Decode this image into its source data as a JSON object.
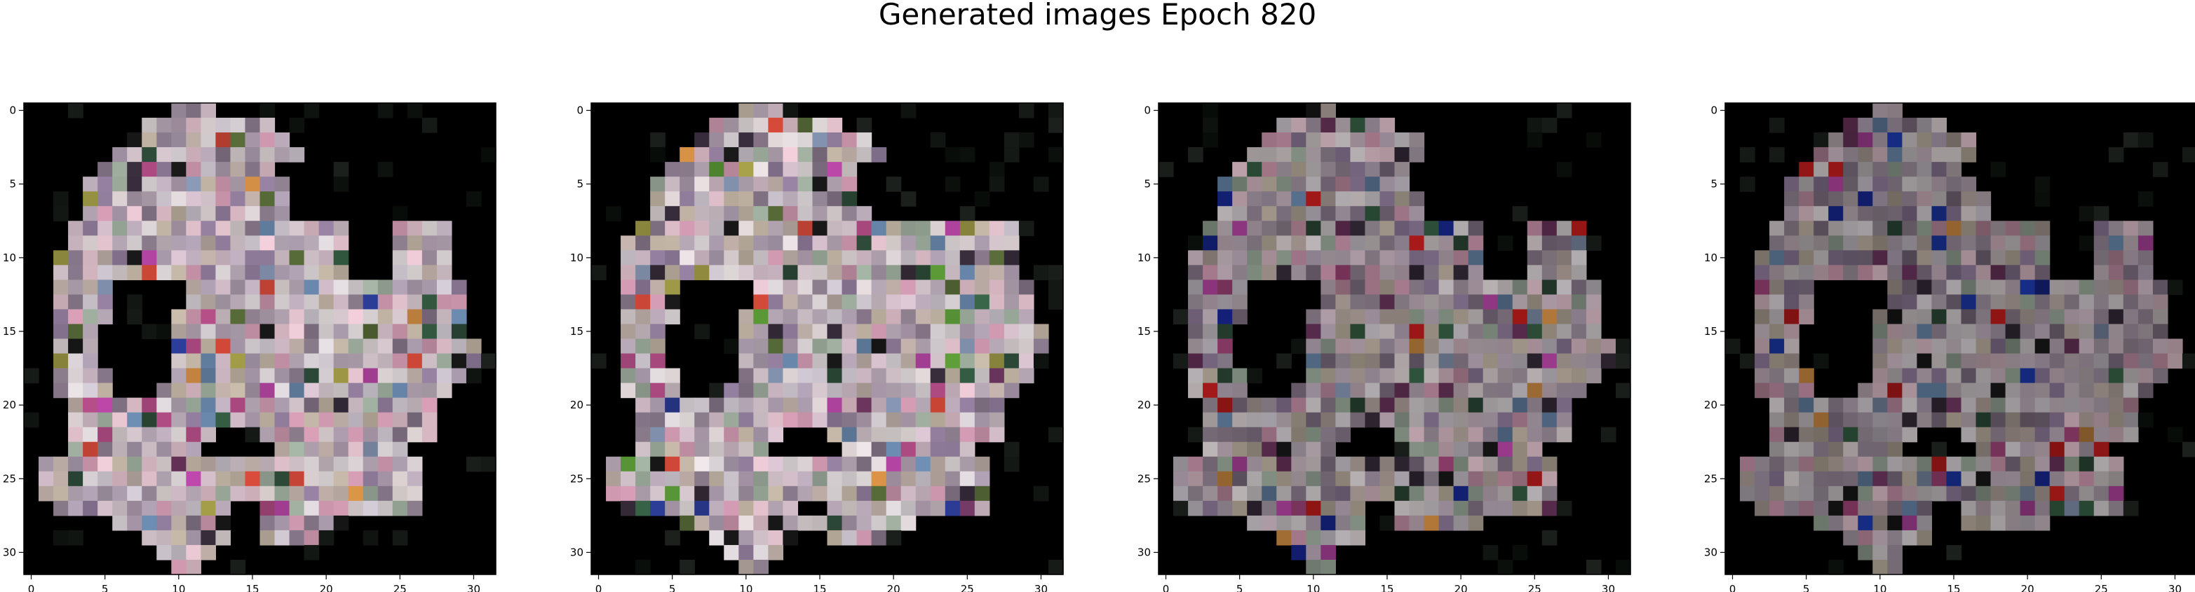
{
  "figure_title": "Generated images Epoch 820",
  "chart_data": [
    {
      "type": "heatmap",
      "title": "",
      "xlabel": "",
      "ylabel": "",
      "grid_size": [
        32,
        32
      ],
      "xlim": [
        -0.5,
        31.5
      ],
      "ylim": [
        31.5,
        -0.5
      ],
      "xticks": [
        0,
        5,
        10,
        15,
        20,
        25,
        30
      ],
      "yticks": [
        0,
        5,
        10,
        15,
        20,
        25,
        30
      ],
      "description_colors": {
        "background": "#000000",
        "dominant_light": "#e6dcdc"
      },
      "mask_rows": [
        "..........XXX...................",
        "........XXXXXXXXX...............",
        ".......XXXXXXXXXXX..............",
        "......XXXXXXXXXXXXX.............",
        ".....XXXXXXXXXXXX...............",
        "....XXXXXXXXXXXXXX..............",
        "....XXXXXXXXXXXXXX..............",
        "....XXXXXXXXXXXXXX..............",
        "...XXXXXXXXXXXXXXXXXXX...XXXX...",
        "...XXXXXXXXXXXXXXXXXXX...XXXX...",
        "..XXXXXXXXXXXXXXXXXXXX...XXXX...",
        "..XXXXXXXXXXXXXXXXXXXX...XXXX...",
        "..XXXX.....XXXXXXXXXXXXXXXXXXX..",
        "..XXXX.....XXXXXXXXXXXXXXXXXXX..",
        "..XXXX....XXXXXXXXXXXXXXXXXXXX..",
        "..XXX.....XXXXXXXXXXXXXXXXXXXX..",
        "..XXX.....XXXXXXXXXXXXXXXXXXXXX.",
        "..XXX.....XXXXXXXXXXXXXXXXXXXXX.",
        "..XXXX....XXXXXXXXXXXXXXXXXXXX..",
        "..XXXX...XXXXXXXXXXXXXXXXXXXX...",
        "...XXXXXXXXXXXXXXXXXXXXXXXXX....",
        "...XXXXXXXXXXXXXXXXXXXXXXXXX....",
        "...XXXXXXXXXX...XXXXXXXXXXXX....",
        "...XXXXXXXXX.....XXXXXXXXX......",
        ".XXXXXXXXXXXXXXXXXXXXXXXXXX.....",
        ".XXXXXXXXXXXXXXXXXXXXXXXXXX.....",
        ".XXXXXXXXXXXXXXXXXXXXXXXXXX.....",
        "..XXXXXXXXXXXX..XXXXXXXXXXX.....",
        "......XXXXXXXX..XXXXXX..........",
        "........XXXXXX..XXXX............",
        ".........XXXX...................",
        "..........XX...................."
      ],
      "palette": [
        "#eadfe0",
        "#d8c8d0",
        "#c9b8c8",
        "#e9e2e6",
        "#bfb0be",
        "#d7cfd9",
        "#a897a8",
        "#f0e8ea",
        "#cdbfae",
        "#b6a6b9",
        "#8d7c90",
        "#e0c9d6",
        "#c8b7b0",
        "#a8b8a8",
        "#9c86a8",
        "#d9a0b8",
        "#f3d0dc"
      ],
      "accent_palette": [
        "#d94b3b",
        "#2d3e9a",
        "#3c6a4c",
        "#b84f8a",
        "#7a3c6a",
        "#e39a4a",
        "#6f8fb5",
        "#3a2f3e",
        "#5a6e3a",
        "#1a1a1a",
        "#2e4c3a",
        "#c84cb4",
        "#8a9ab8",
        "#a8a24a"
      ],
      "brightness": 1.0,
      "seed": 11
    },
    {
      "type": "heatmap",
      "title": "",
      "xlabel": "",
      "ylabel": "",
      "grid_size": [
        32,
        32
      ],
      "xlim": [
        -0.5,
        31.5
      ],
      "ylim": [
        31.5,
        -0.5
      ],
      "xticks": [
        0,
        5,
        10,
        15,
        20,
        25,
        30
      ],
      "yticks": [
        0,
        5,
        10,
        15,
        20,
        25,
        30
      ],
      "description_colors": {
        "background": "#000000",
        "dominant_light": "#e6dcdc"
      },
      "mask_rows": [
        "..........XXX...................",
        "........XXXXXXXXX...............",
        ".......XXXXXXXXXXXX.............",
        "......XXXXXXXXXXXXXX............",
        ".....XXXXXXXXXXXXX..............",
        "....XXXXXXXXXXXXXX..............",
        "....XXXXXXXXXXXXXX..............",
        "....XXXXXXXXXXXXXXX.............",
        "...XXXXXXXXXXXXXXXXXXXXXXXXXX...",
        "..XXXXXXXXXXXXXXXXXXXXXXXXXXX...",
        "..XXXXXXXXXXXXXXXXXXXXXXXXXXX...",
        "..XXXXXXXXXXXXXXXXXXXXXXXXXXX...",
        "..XXXX.....XXXXXXXXXXXXXXXXXXX..",
        "..XXXX.....XXXXXXXXXXXXXXXXXXX..",
        "..XXXX....XXXXXXXXXXXXXXXXXXXX..",
        "..XXX.....XXXXXXXXXXXXXXXXXXXXX.",
        "..XXX.....XXXXXXXXXXXXXXXXXXXXX.",
        "..XXX.....XXXXXXXXXXXXXXXXXXXX..",
        "..XXXX....XXXXXXXXXXXXXXXXXXXX..",
        "..XXXX...XXXXXXXXXXXXXXXXXXXX...",
        "...XXXXXXXXXXXXXXXXXXXXXXXXX....",
        "...XXXXXXXXXXXXXXXXXXXXXXXXX....",
        "...XXXXXXXXXX...XXXXXXXXXXXX....",
        "...XXXXXXXXX.....XXXXXXXXX......",
        ".XXXXXXXXXXXXXXXXXXXXXXXXXX.....",
        ".XXXXXXXXXXXXXXXXXXXXXXXXXX.....",
        ".XXXXXXXXXXXXXXXXXXXXXXXXXX.....",
        "..XXXXXXXXXXXX..XXXXXXXXXXX.....",
        "......XXXXXXXXXXXXXXXX..........",
        "........XXXXXX..XXXX............",
        ".........XXXX...................",
        "..........XX...................."
      ],
      "palette": [
        "#eadfe0",
        "#d8c8d0",
        "#c9b8c8",
        "#e9e2e6",
        "#bfb0be",
        "#d7cfd9",
        "#a897a8",
        "#f0e8ea",
        "#cdbfae",
        "#b6a6b9",
        "#8d7c90",
        "#e0c9d6",
        "#c8b7b0",
        "#a8b8a8",
        "#9c86a8",
        "#d9a0b8",
        "#f3d0dc"
      ],
      "accent_palette": [
        "#d94b3b",
        "#2d3e9a",
        "#3c6a4c",
        "#b84f8a",
        "#7a3c6a",
        "#e39a4a",
        "#6f8fb5",
        "#3a2f3e",
        "#5a6e3a",
        "#1a1a1a",
        "#2e4c3a",
        "#c84cb4",
        "#8a9ab8",
        "#a8a24a",
        "#5fa03a"
      ],
      "brightness": 1.0,
      "seed": 23
    },
    {
      "type": "heatmap",
      "title": "",
      "xlabel": "",
      "ylabel": "",
      "grid_size": [
        32,
        32
      ],
      "xlim": [
        -0.5,
        31.5
      ],
      "ylim": [
        31.5,
        -0.5
      ],
      "xticks": [
        0,
        5,
        10,
        15,
        20,
        25,
        30
      ],
      "yticks": [
        0,
        5,
        10,
        15,
        20,
        25,
        30
      ],
      "description_colors": {
        "background": "#000000",
        "dominant_light": "#e6dcdc"
      },
      "mask_rows": [
        "..........XX....................",
        "........XXXXXXXX................",
        ".......XXXXXXXXXXX..............",
        "......XXXXXXXXXXXX..............",
        ".....XXXXXXXXXXXX...............",
        "....XXXXXXXXXXXXX...............",
        "....XXXXXXXXXXXXXX..............",
        "....XXXXXXXXXXXXXX..............",
        "...XXXXXXXXXXXXXXXXXXX...XXXX...",
        "...XXXXXXXXXXXXXXXXXXX...XXXX...",
        "..XXXXXXXXXXXXXXXXXXXX...XXXX...",
        "..XXXXXXXXXXXXXXXXXXXX...XXXX...",
        "..XXXX.....XXXXXXXXXXXXXXXXXXX..",
        "..XXXX.....XXXXXXXXXXXXXXXXXXX..",
        "..XXXX....XXXXXXXXXXXXXXXXXXXX..",
        "..XXX.....XXXXXXXXXXXXXXXXXXXX..",
        "..XXX.....XXXXXXXXXXXXXXXXXXXXX.",
        "..XXX.....XXXXXXXXXXXXXXXXXXXXX.",
        "..XXXX....XXXXXXXXXXXXXXXXXXXX..",
        "..XXXX...XXXXXXXXXXXXXXXXXXXX...",
        "...XXXXXXXXXXXXXXXXXXXXXXXXX....",
        "...XXXXXXXXXXXXXXXXXXXXXXXXX....",
        "...XXXXXXXXXX...XXXXXXXXXXXX....",
        "...XXXXXXXXX.....XXXXXXXXX......",
        ".XXXXXXXXXXXXXXXXXXXXXXXXXX.....",
        ".XXXXXXXXXXXXXXXXXXXXXXXXXX.....",
        ".XXXXXXXXXXXXXXXXXXXXXXXXXX.....",
        "..XXXXXXXXXXXX..XXXXXXXXXXX.....",
        "......XXXXXXXX..XXXXXX..........",
        "........XXXXXX..................",
        ".........XXX....................",
        "..........XX...................."
      ],
      "palette": [
        "#eadfe0",
        "#d8c8d0",
        "#c9b8c8",
        "#e9e2e6",
        "#bfb0be",
        "#d7cfd9",
        "#a897a8",
        "#f0e8ea",
        "#cdbfae",
        "#b6a6b9",
        "#8d7c90",
        "#e0c9d6",
        "#c8b7b0",
        "#a8b8a8",
        "#9c86a8",
        "#d9a0b8",
        "#f3d0dc"
      ],
      "accent_palette": [
        "#d92020",
        "#1a2a9a",
        "#3c6a4c",
        "#b84f8a",
        "#7a3c6a",
        "#e39a4a",
        "#6f8fb5",
        "#3a2f3e",
        "#2e4c3a",
        "#1a1a1a",
        "#c84cb4",
        "#8a9ab8"
      ],
      "brightness": 0.78,
      "seed": 37
    },
    {
      "type": "heatmap",
      "title": "",
      "xlabel": "",
      "ylabel": "",
      "grid_size": [
        32,
        32
      ],
      "xlim": [
        -0.5,
        31.5
      ],
      "ylim": [
        31.5,
        -0.5
      ],
      "xticks": [
        0,
        5,
        10,
        15,
        20,
        25,
        30
      ],
      "yticks": [
        0,
        5,
        10,
        15,
        20,
        25,
        30
      ],
      "description_colors": {
        "background": "#000000",
        "dominant_light": "#e6dcdc"
      },
      "mask_rows": [
        "..........XX....................",
        "........XXXXXXX.................",
        ".......XXXXXXXXXX...............",
        "......XXXXXXXXXXX...............",
        ".....XXXXXXXXXXX................",
        "....XXXXXXXXXXXXX...............",
        "....XXXXXXXXXXXXXX..............",
        "....XXXXXXXXXXXXXX..............",
        "...XXXXXXXXXXXXXXXXXXX...XXXX...",
        "...XXXXXXXXXXXXXXXXXXX...XXXX...",
        "..XXXXXXXXXXXXXXXXXXXX...XXXX...",
        "..XXXXXXXXXXXXXXXXXXXX...XXXX...",
        "..XXXX.....XXXXXXXXXXXXXXXXXXX..",
        "..XXXX.....XXXXXXXXXXXXXXXXXXX..",
        "..XXXX....XXXXXXXXXXXXXXXXXXXX..",
        "..XXX.....XXXXXXXXXXXXXXXXXXXX..",
        "..XXX.....XXXXXXXXXXXXXXXXXXXXX.",
        "..XXX.....XXXXXXXXXXXXXXXXXXXXX.",
        "..XXXX....XXXXXXXXXXXXXXXXXXXX..",
        "..XXXX...XXXXXXXXXXXXXXXXXXXX...",
        "...XXXXXXXXXXXXXXXXXXXXXXXXX....",
        "...XXXXXXXXXXXXXXXXXXXXXXXXX....",
        "...XXXXXXXXXX...XXXXXXXXXXXX....",
        "...XXXXXXXXX.....XXXXXXXXX......",
        ".XXXXXXXXXXXXXXXXXXXXXXXXXX.....",
        ".XXXXXXXXXXXXXXXXXXXXXXXXXX.....",
        ".XXXXXXXXXXXXXXXXXXXXXXXXXX.....",
        "..XXXXXXXXXXXX..XXXXXXXXXXX.....",
        "......XXXXXXXX..XXXXXX..........",
        "........XXXXXX..................",
        ".........XXX....................",
        "..........XX...................."
      ],
      "palette": [
        "#eadfe0",
        "#d8c8d0",
        "#c9b8c8",
        "#e9e2e6",
        "#bfb0be",
        "#d7cfd9",
        "#a897a8",
        "#f0e8ea",
        "#cdbfae",
        "#b6a6b9",
        "#8d7c90",
        "#e0c9d6",
        "#c8b7b0",
        "#a8b8a8",
        "#9c86a8",
        "#d9a0b8",
        "#f3d0dc"
      ],
      "accent_palette": [
        "#d92020",
        "#1a2a9a",
        "#3c6a4c",
        "#b84f8a",
        "#7a3c6a",
        "#e39a4a",
        "#6f8fb5",
        "#3a2f3e",
        "#2e4c3a",
        "#1a1a1a",
        "#c84cb4",
        "#8a9ab8",
        "#2040c0"
      ],
      "brightness": 0.7,
      "seed": 51
    }
  ]
}
